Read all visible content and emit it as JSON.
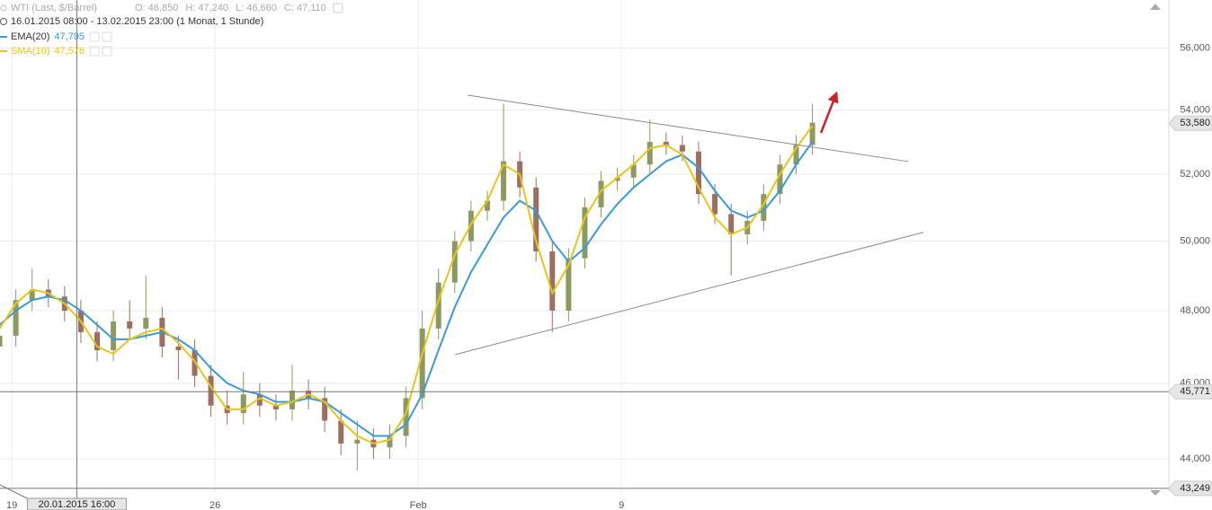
{
  "chart_data": {
    "type": "candlestick",
    "title": "WTI (Last, $/Barrel)",
    "header": [
      "O: 46,850",
      "H: 47,240",
      "L: 46,660",
      "C: 47,110"
    ],
    "subtitle": "16.01.2015 08:00 - 13.02.2015 23:00 (1 Monat, 1 Stunde)",
    "x": [
      -0.3,
      0.1,
      0.5,
      0.9,
      1.3,
      1.7,
      2.1,
      2.5,
      2.9,
      3.3,
      3.7,
      4.1,
      4.5,
      4.9,
      5.3,
      5.7,
      6.1,
      6.5,
      6.9,
      7.3,
      7.7,
      8.1,
      8.5,
      8.9,
      9.3,
      9.7,
      10.1,
      10.5,
      10.9,
      11.3,
      11.7,
      12.1,
      12.5,
      12.9,
      13.3,
      13.7,
      14.1,
      14.5,
      14.9,
      15.3,
      15.7,
      16.1,
      16.5,
      16.9,
      17.3,
      17.7,
      18.1,
      18.5,
      18.9,
      19.3,
      19.7
    ],
    "open": [
      47.0,
      47.3,
      48.3,
      48.6,
      48.4,
      48.0,
      47.4,
      46.9,
      47.7,
      47.5,
      47.8,
      47.0,
      46.9,
      46.2,
      45.4,
      45.2,
      45.7,
      45.4,
      45.3,
      45.8,
      45.6,
      45.0,
      44.4,
      44.5,
      44.3,
      44.6,
      45.6,
      47.5,
      48.8,
      50.0,
      50.9,
      51.2,
      52.4,
      51.6,
      49.7,
      48.0,
      49.5,
      51.0,
      51.8,
      51.9,
      52.3,
      53.0,
      52.9,
      52.7,
      51.4,
      50.8,
      50.2,
      50.6,
      51.4,
      52.3,
      52.9
    ],
    "high": [
      47.6,
      48.6,
      49.2,
      48.9,
      48.7,
      48.3,
      47.7,
      48.0,
      48.3,
      49.0,
      48.1,
      47.3,
      47.2,
      46.5,
      45.8,
      46.3,
      46.0,
      45.7,
      46.5,
      46.1,
      45.9,
      45.3,
      45.0,
      44.8,
      44.9,
      45.9,
      48.0,
      49.2,
      50.3,
      51.2,
      51.5,
      54.2,
      52.7,
      51.9,
      50.0,
      49.8,
      51.3,
      52.1,
      52.2,
      52.6,
      53.7,
      53.3,
      53.2,
      53.0,
      51.7,
      51.1,
      50.9,
      51.7,
      52.6,
      53.2,
      54.2
    ],
    "low": [
      46.7,
      47.0,
      48.0,
      48.1,
      47.7,
      47.1,
      46.6,
      46.6,
      47.2,
      47.2,
      46.7,
      46.1,
      45.9,
      45.1,
      44.9,
      44.9,
      45.1,
      45.0,
      45.0,
      45.3,
      44.7,
      44.1,
      43.7,
      44.0,
      44.0,
      44.3,
      45.3,
      47.2,
      48.5,
      49.7,
      50.6,
      50.9,
      51.3,
      49.4,
      47.4,
      47.7,
      49.2,
      50.7,
      51.5,
      51.6,
      52.0,
      52.6,
      52.4,
      51.1,
      50.5,
      49.0,
      49.9,
      50.3,
      51.1,
      52.0,
      52.6
    ],
    "close": [
      47.3,
      48.3,
      48.6,
      48.4,
      48.0,
      47.4,
      46.9,
      47.7,
      47.5,
      47.8,
      47.0,
      46.9,
      46.2,
      45.4,
      45.2,
      45.7,
      45.4,
      45.3,
      45.8,
      45.6,
      45.0,
      44.4,
      44.5,
      44.3,
      44.6,
      45.6,
      47.5,
      48.8,
      50.0,
      50.9,
      51.2,
      52.4,
      51.6,
      49.7,
      48.0,
      49.5,
      51.0,
      51.8,
      51.9,
      52.3,
      53.0,
      52.9,
      52.7,
      51.4,
      50.8,
      50.2,
      50.6,
      51.4,
      52.3,
      52.9,
      53.6
    ],
    "up_color": "#8c9a62",
    "down_color": "#9c6f62",
    "series": [
      {
        "name": "EMA(20)",
        "color": "#3a9ad9",
        "value_label": "47,795",
        "values": [
          47.6,
          48.0,
          48.3,
          48.4,
          48.3,
          48.0,
          47.6,
          47.2,
          47.2,
          47.3,
          47.4,
          47.2,
          46.9,
          46.4,
          46.0,
          45.8,
          45.7,
          45.5,
          45.5,
          45.6,
          45.5,
          45.2,
          44.9,
          44.6,
          44.6,
          44.9,
          45.7,
          46.9,
          48.1,
          49.1,
          49.9,
          50.7,
          51.2,
          50.9,
          50.0,
          49.4,
          49.8,
          50.5,
          51.1,
          51.6,
          52.0,
          52.4,
          52.6,
          52.2,
          51.5,
          50.9,
          50.7,
          50.9,
          51.5,
          52.3,
          53.0
        ]
      },
      {
        "name": "SMA(10)",
        "color": "#e8c619",
        "value_label": "47,576",
        "values": [
          47.5,
          48.2,
          48.6,
          48.5,
          48.2,
          47.7,
          47.0,
          46.8,
          47.2,
          47.4,
          47.5,
          47.1,
          46.6,
          45.9,
          45.3,
          45.3,
          45.6,
          45.4,
          45.5,
          45.7,
          45.5,
          45.0,
          44.6,
          44.4,
          44.5,
          45.2,
          46.8,
          48.3,
          49.6,
          50.5,
          51.2,
          52.3,
          52.0,
          50.0,
          48.5,
          49.3,
          50.7,
          51.5,
          51.9,
          52.3,
          52.8,
          52.9,
          52.6,
          51.6,
          50.7,
          50.2,
          50.4,
          51.1,
          52.0,
          52.8,
          53.5
        ]
      }
    ],
    "xlim": [
      -0.29,
      28.47
    ],
    "xticks": [
      {
        "value": 0,
        "label": "19"
      },
      {
        "value": 5,
        "label": "26"
      },
      {
        "value": 10,
        "label": "Feb"
      },
      {
        "value": 15,
        "label": "9"
      }
    ],
    "ylim": [
      43.2,
      57.6
    ],
    "yticks": [
      {
        "value": 44,
        "label": "44,000"
      },
      {
        "value": 46,
        "label": "46,000"
      },
      {
        "value": 48,
        "label": "48,000"
      },
      {
        "value": 50,
        "label": "50,000"
      },
      {
        "value": 52,
        "label": "52,000"
      },
      {
        "value": 54,
        "label": "54,000"
      },
      {
        "value": 56,
        "label": "56,000"
      }
    ],
    "log_scale": true,
    "grid": true,
    "price_markers": [
      {
        "value": 53.58,
        "label": "53,580"
      },
      {
        "value": 45.771,
        "label": "45,771"
      },
      {
        "value": 43.249,
        "label": "43,249"
      }
    ],
    "crosshair": {
      "x": 1.6,
      "label": "20.01.2015 16:00"
    },
    "trendlines": [
      {
        "x": [
          11.22,
          22.06
        ],
        "y": [
          54.47,
          52.39
        ],
        "color": "#8a8a8a"
      },
      {
        "x": [
          10.91,
          22.43
        ],
        "y": [
          46.78,
          50.26
        ],
        "color": "#8a8a8a"
      },
      {
        "x": [
          19.91,
          20.29
        ],
        "y": [
          53.28,
          54.53
        ],
        "color": "#d0202a"
      }
    ]
  }
}
